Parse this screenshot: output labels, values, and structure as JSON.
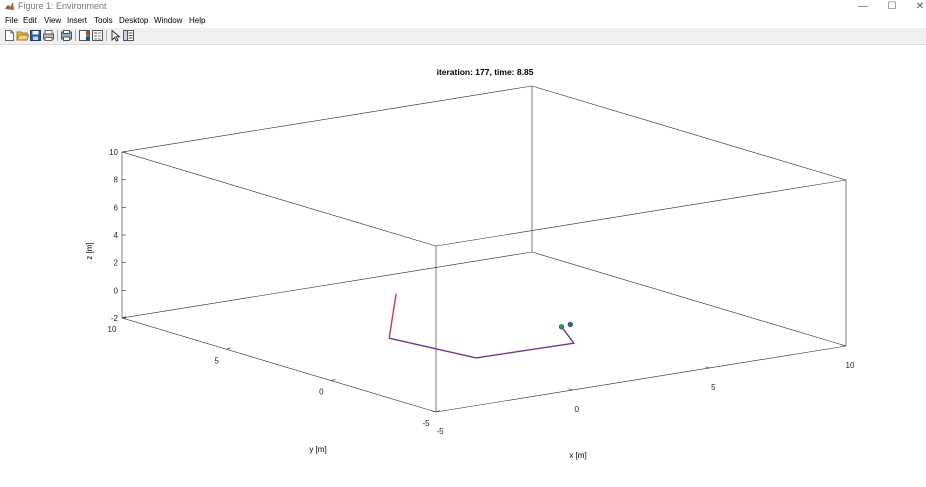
{
  "window": {
    "title": "Figure 1: Environment",
    "controls": {
      "minimize": "—",
      "maximize": "☐",
      "close": "✕"
    }
  },
  "menubar": {
    "items": [
      "File",
      "Edit",
      "View",
      "Insert",
      "Tools",
      "Desktop",
      "Window",
      "Help"
    ]
  },
  "toolbar": {
    "buttons": [
      "new-figure-icon",
      "open-file-icon",
      "save-icon",
      "print-icon",
      "print-preview-icon",
      "toggle-colorbar-icon",
      "insert-legend-icon",
      "edit-plot-arrow-icon",
      "property-inspector-icon"
    ]
  },
  "chart_data": {
    "type": "line3d",
    "title": "iteration: 177, time: 8.85",
    "xlabel": "x [m]",
    "ylabel": "y [m]",
    "zlabel": "z [m]",
    "xlim": [
      -5,
      10
    ],
    "ylim": [
      -5,
      10
    ],
    "zlim": [
      -2,
      10
    ],
    "xticks": [
      -5,
      0,
      5,
      10
    ],
    "yticks": [
      -5,
      0,
      5,
      10
    ],
    "zticks": [
      -2,
      0,
      2,
      4,
      6,
      8,
      10
    ],
    "grid": false,
    "box": true,
    "series": [
      {
        "color": "#e0303c",
        "points": [
          [
            1.2,
            5.0,
            0.05
          ],
          [
            -2.5,
            0.5,
            0.05
          ],
          [
            -2.0,
            -3.0,
            0.05
          ],
          [
            1.5,
            -3.1,
            0.05
          ],
          [
            2.5,
            -1.2,
            0.05
          ]
        ]
      },
      {
        "color": "#3040d0",
        "points": [
          [
            -2.5,
            0.5,
            0.05
          ],
          [
            -2.0,
            -3.0,
            0.05
          ],
          [
            1.5,
            -3.1,
            0.05
          ],
          [
            2.5,
            -1.2,
            0.05
          ]
        ]
      }
    ],
    "markers": [
      {
        "point": [
          2.5,
          -1.2,
          0.05
        ],
        "color": "#2a9a6a"
      },
      {
        "point": [
          2.9,
          -1.1,
          0.05
        ],
        "color": "#2a6a9a"
      }
    ]
  }
}
